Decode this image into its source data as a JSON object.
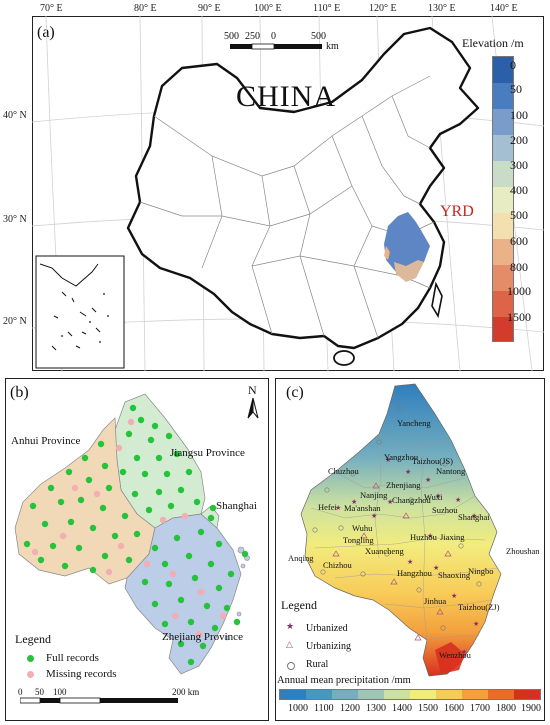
{
  "panel_a": {
    "label": "(a)",
    "top_ticks": [
      "70° E",
      "80° E",
      "90° E",
      "100° E",
      "110° E",
      "120° E",
      "130° E",
      "140° E"
    ],
    "left_ticks": [
      "40° N",
      "30° N",
      "20° N"
    ],
    "scale_numbers": [
      "500",
      "250",
      "0",
      "500"
    ],
    "scale_unit": "km",
    "country_label": "CHINA",
    "region_label": "YRD",
    "elevation": {
      "title": "Elevation /m",
      "labels": [
        "0",
        "50",
        "100",
        "200",
        "300",
        "400",
        "500",
        "600",
        "800",
        "1000",
        "1500"
      ],
      "colors": [
        "#2b5fa8",
        "#4a7cc0",
        "#7a9ccb",
        "#a5bfd2",
        "#c8dcc8",
        "#e8ecc2",
        "#f3dfb0",
        "#ebb189",
        "#e48c68",
        "#de6448",
        "#d33b2c"
      ]
    }
  },
  "panel_b": {
    "label": "(b)",
    "north": "N",
    "provinces": [
      "Anhui Province",
      "Jiangsu Province",
      "Shanghai",
      "Zhejiang Province"
    ],
    "legend_title": "Legend",
    "legend_items": [
      "Full records",
      "Missing records"
    ],
    "scale": [
      "0",
      "50",
      "100",
      "200 km"
    ],
    "colors": {
      "anhui": "#f1d9b8",
      "jiangsu": "#d3ecd1",
      "zhejiang": "#bccde8",
      "full": "#27c23b",
      "missing": "#f2aeb0"
    }
  },
  "panel_c": {
    "label": "(c)",
    "cities": [
      "Yancheng",
      "Yangzhou",
      "Taizhou(JS)",
      "Chuzhou",
      "Nantong",
      "Zhenjiang",
      "Nanjing",
      "Changzhou",
      "Wuxi",
      "Hefei",
      "Ma'anshan",
      "Suzhou",
      "Wuhu",
      "Shanghai",
      "Tongling",
      "Huzhou",
      "Jiaxing",
      "Xuancheng",
      "Zhoushan",
      "Anqing",
      "Chizhou",
      "Hangzhou",
      "Ningbo",
      "Shaoxing",
      "Jinhua",
      "Taizhou(ZJ)",
      "Wenzhou"
    ],
    "legend_title": "Legend",
    "legend_items": [
      "Urbanized",
      "Urbanizing",
      "Rural"
    ],
    "precip_title": "Annual mean precipitation /mm",
    "precip_labels": [
      "1000",
      "1100",
      "1200",
      "1300",
      "1400",
      "1500",
      "1600",
      "1700",
      "1800",
      "1900"
    ],
    "precip_colors": [
      "#2f7ebd",
      "#4a95c2",
      "#74aebf",
      "#9ec6b4",
      "#cde2a0",
      "#f2ec7e",
      "#f8cb58",
      "#f3a03d",
      "#ea6c2b",
      "#d8301f"
    ]
  }
}
